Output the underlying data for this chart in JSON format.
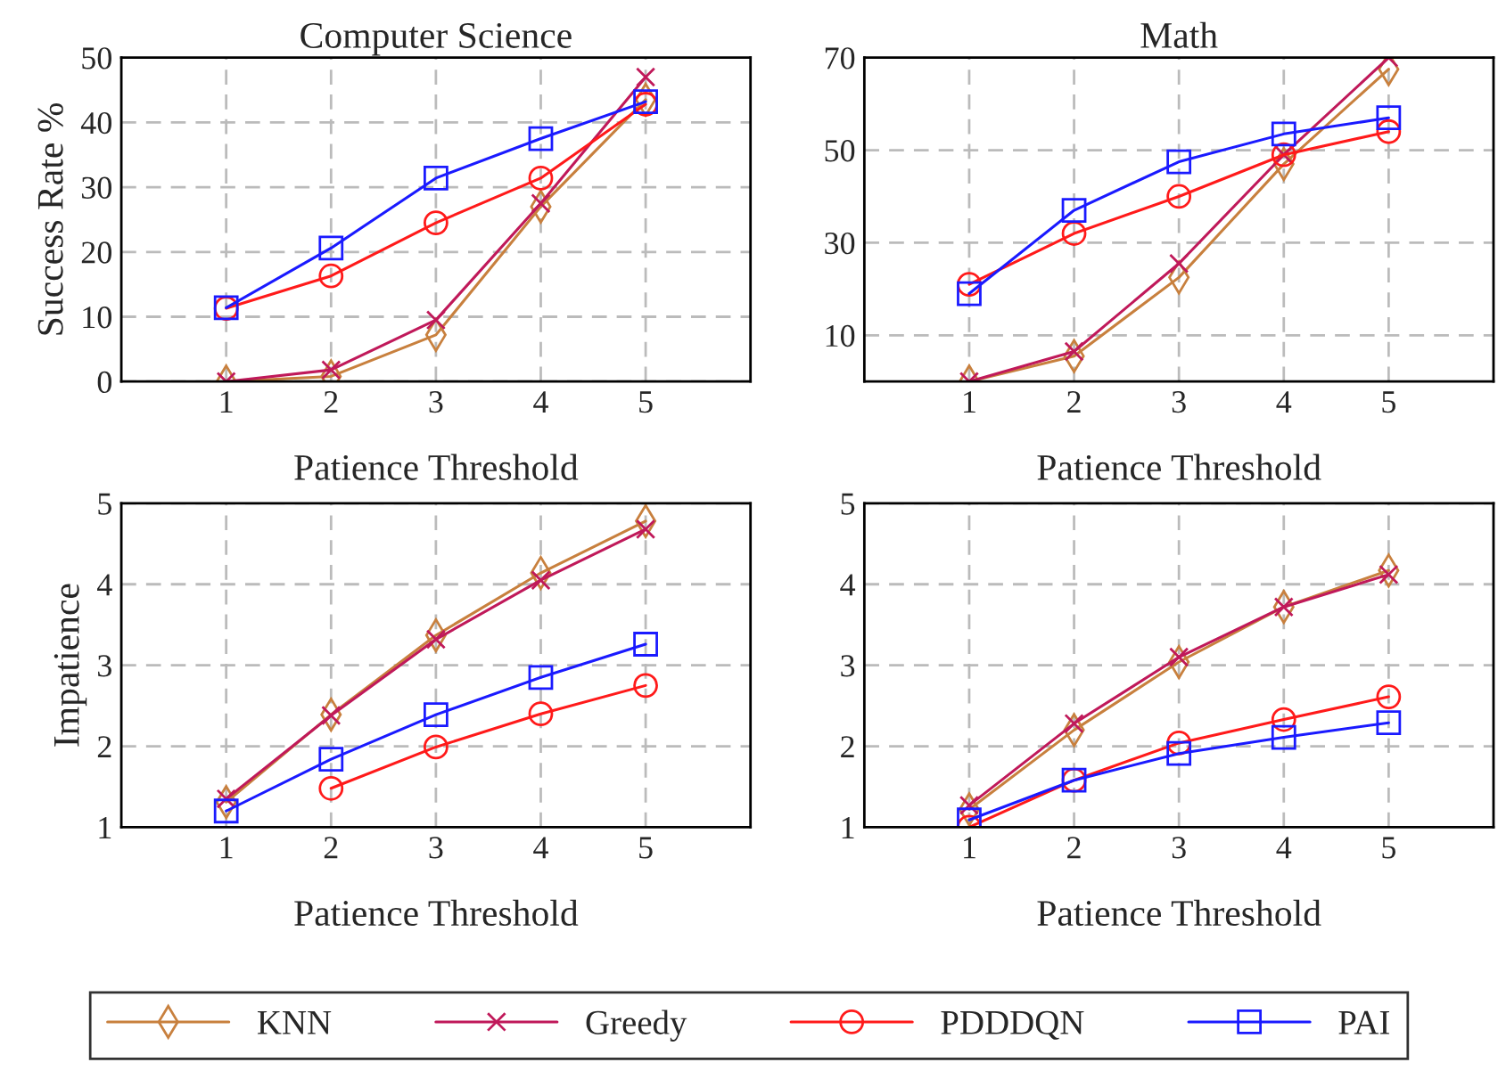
{
  "chart_data": [
    {
      "type": "line",
      "title": "Computer Science",
      "xlabel": "Patience Threshold",
      "ylabel": "Success Rate %",
      "x": [
        1,
        2,
        3,
        4,
        5
      ],
      "xlim": [
        0,
        6
      ],
      "xticks": [
        1,
        2,
        3,
        4,
        5
      ],
      "ylim": [
        0,
        50
      ],
      "yticks": [
        0,
        10,
        20,
        30,
        40,
        50
      ],
      "grid": true,
      "legend": "bottom",
      "series": [
        {
          "name": "KNN",
          "color": "#c8803e",
          "marker": "diamond",
          "values": [
            0,
            0.8,
            7.2,
            27,
            43.5
          ]
        },
        {
          "name": "Greedy",
          "color": "#c0195a",
          "marker": "cross",
          "values": [
            0,
            1.8,
            9.5,
            27.5,
            47
          ]
        },
        {
          "name": "PDDDQN",
          "color": "#ff1a1a",
          "marker": "circle",
          "values": [
            11.3,
            16.3,
            24.5,
            31.4,
            42.8
          ]
        },
        {
          "name": "PAI",
          "color": "#1a1aff",
          "marker": "square",
          "values": [
            11.4,
            20.6,
            31.4,
            37.5,
            43.2
          ]
        }
      ]
    },
    {
      "type": "line",
      "title": "Math",
      "xlabel": "Patience Threshold",
      "x": [
        1,
        2,
        3,
        4,
        5
      ],
      "xlim": [
        0,
        6
      ],
      "xticks": [
        1,
        2,
        3,
        4,
        5
      ],
      "ylim": [
        0,
        70
      ],
      "yticks": [
        10,
        30,
        50,
        70
      ],
      "grid": true,
      "series": [
        {
          "color": "#c8803e",
          "marker": "diamond",
          "values": [
            0,
            5.5,
            22.5,
            47,
            67.5
          ]
        },
        {
          "color": "#c0195a",
          "marker": "cross",
          "values": [
            0,
            6.5,
            25.5,
            49,
            70
          ]
        },
        {
          "color": "#ff1a1a",
          "marker": "circle",
          "values": [
            21,
            32,
            40,
            49,
            54
          ]
        },
        {
          "color": "#1a1aff",
          "marker": "square",
          "values": [
            19,
            37,
            47.5,
            53.5,
            57
          ]
        }
      ]
    },
    {
      "type": "line",
      "xlabel": "Patience Threshold",
      "ylabel": "Impatience",
      "x": [
        1,
        2,
        3,
        4,
        5
      ],
      "xlim": [
        0,
        6
      ],
      "xticks": [
        1,
        2,
        3,
        4,
        5
      ],
      "ylim": [
        1,
        5
      ],
      "yticks": [
        1,
        2,
        3,
        4,
        5
      ],
      "grid": true,
      "series": [
        {
          "color": "#c8803e",
          "marker": "diamond",
          "values": [
            1.31,
            2.39,
            3.37,
            4.14,
            4.78
          ]
        },
        {
          "color": "#c0195a",
          "marker": "cross",
          "values": [
            1.35,
            2.38,
            3.32,
            4.05,
            4.68
          ]
        },
        {
          "color": "#ff1a1a",
          "marker": "circle",
          "values": [
            null,
            1.48,
            1.99,
            2.4,
            2.75
          ]
        },
        {
          "color": "#1a1aff",
          "marker": "square",
          "values": [
            1.2,
            1.84,
            2.39,
            2.85,
            3.26
          ]
        }
      ]
    },
    {
      "type": "line",
      "xlabel": "Patience Threshold",
      "x": [
        1,
        2,
        3,
        4,
        5
      ],
      "xlim": [
        0,
        6
      ],
      "xticks": [
        1,
        2,
        3,
        4,
        5
      ],
      "ylim": [
        1,
        5
      ],
      "yticks": [
        1,
        2,
        3,
        4,
        5
      ],
      "grid": true,
      "series": [
        {
          "color": "#c8803e",
          "marker": "diamond",
          "values": [
            1.22,
            2.2,
            3.04,
            3.72,
            4.17
          ]
        },
        {
          "color": "#c0195a",
          "marker": "cross",
          "values": [
            1.27,
            2.28,
            3.1,
            3.72,
            4.12
          ]
        },
        {
          "color": "#ff1a1a",
          "marker": "circle",
          "values": [
            1.0,
            1.58,
            2.04,
            2.33,
            2.61
          ]
        },
        {
          "color": "#1a1aff",
          "marker": "square",
          "values": [
            1.09,
            1.58,
            1.91,
            2.11,
            2.29
          ]
        }
      ]
    }
  ]
}
